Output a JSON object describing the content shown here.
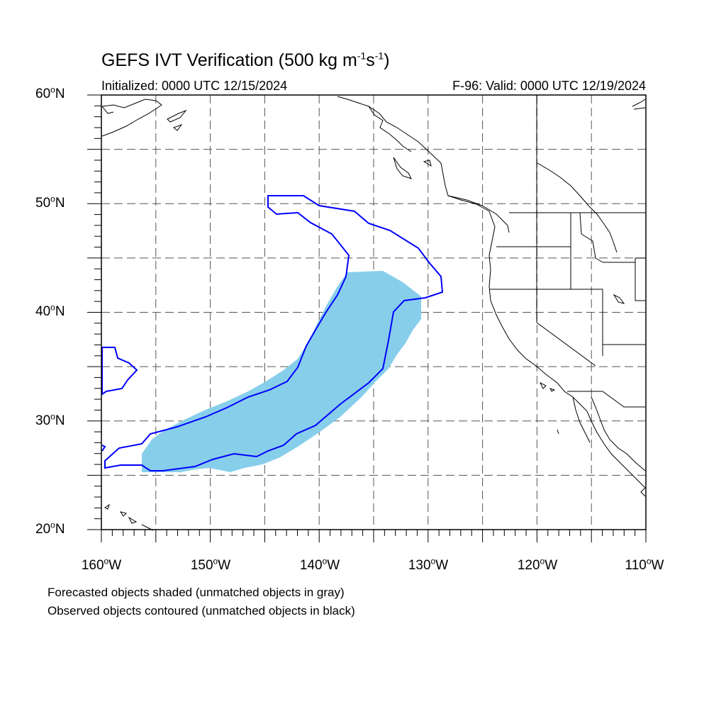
{
  "title": {
    "main": "GEFS IVT Verification (500 kg m",
    "exp1": "-1",
    "mid": "s",
    "exp2": "-1",
    "close": ")"
  },
  "initialized": "Initialized: 0000 UTC 12/15/2024",
  "valid": "F-96: Valid: 0000 UTC 12/19/2024",
  "map": {
    "lon_range": [
      -160,
      -110
    ],
    "lat_range": [
      20,
      60
    ],
    "grid": "dashed every 5 degrees",
    "lat_labels": [
      {
        "value": "60",
        "unit": "o",
        "hemi": "N"
      },
      {
        "value": "50",
        "unit": "o",
        "hemi": "N"
      },
      {
        "value": "40",
        "unit": "o",
        "hemi": "N"
      },
      {
        "value": "30",
        "unit": "o",
        "hemi": "N"
      },
      {
        "value": "20",
        "unit": "o",
        "hemi": "N"
      }
    ],
    "lon_labels": [
      {
        "value": "160",
        "unit": "o",
        "hemi": "W"
      },
      {
        "value": "150",
        "unit": "o",
        "hemi": "W"
      },
      {
        "value": "140",
        "unit": "o",
        "hemi": "W"
      },
      {
        "value": "130",
        "unit": "o",
        "hemi": "W"
      },
      {
        "value": "120",
        "unit": "o",
        "hemi": "W"
      },
      {
        "value": "110",
        "unit": "o",
        "hemi": "W"
      }
    ],
    "forecast_fill_color": "#87ceeb",
    "observed_contour_color": "#0000ff"
  },
  "notes": {
    "line1": "Forecasted objects shaded (unmatched objects in gray)",
    "line2": "Observed objects contoured (unmatched objects in black)"
  }
}
